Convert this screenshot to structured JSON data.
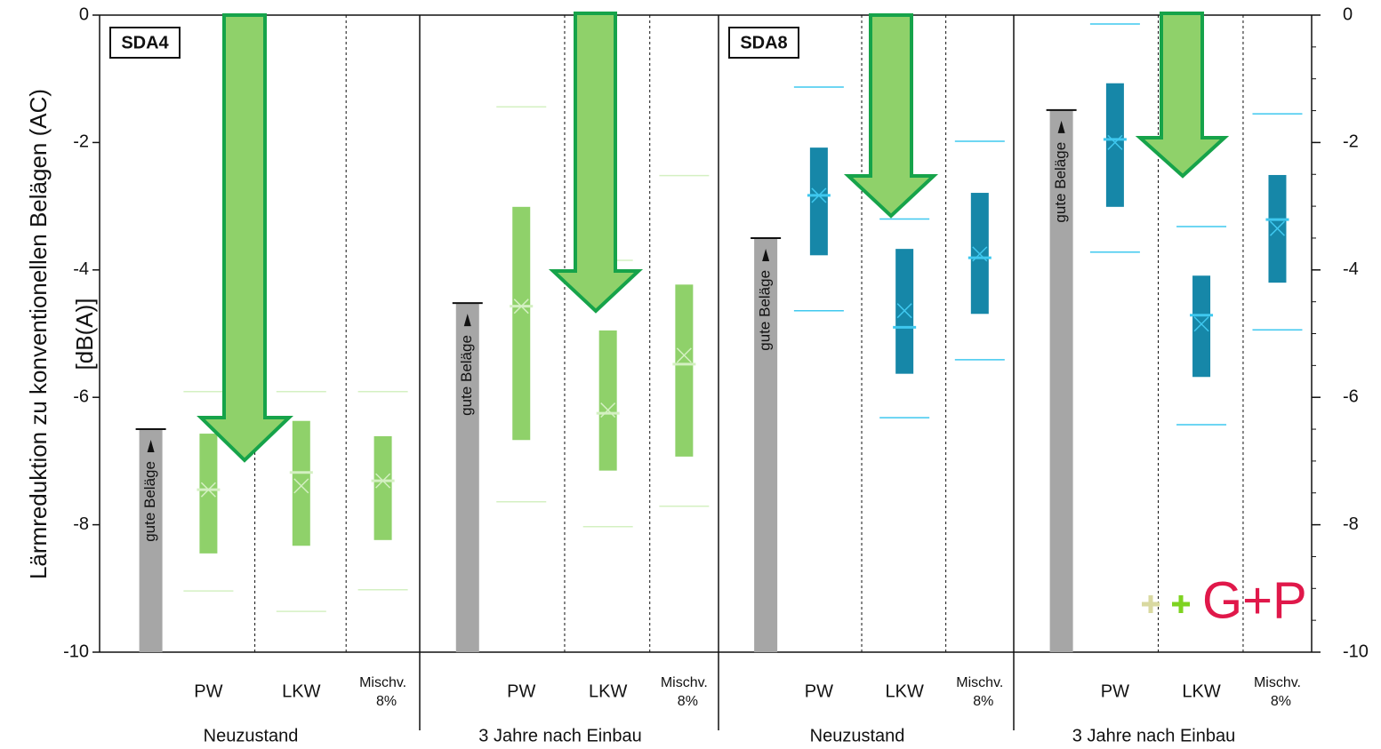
{
  "chart_data": {
    "type": "box",
    "y_label": [
      "Lärmreduktion zu konventionellen Belägen (AC)",
      "[dB(A)]"
    ],
    "ylim": [
      -10,
      0
    ],
    "yticks": [
      0,
      -2,
      -4,
      -6,
      -8,
      -10
    ],
    "y2lim": [
      -10,
      0
    ],
    "y2ticks": [
      0,
      -2,
      -4,
      -6,
      -8,
      -10
    ],
    "reference_label": "gute Beläge",
    "reference_color": "#a6a6a6",
    "logo": "G+P",
    "panels": [
      {
        "tag": "SDA4",
        "group": "Neuzustand",
        "reference": -6.5,
        "color": "#8fd16a",
        "median_color": "#d4f0c2",
        "boxes": [
          {
            "category": "PW",
            "q1": -8.45,
            "q3": -6.57,
            "median": -7.45,
            "mean": -7.45,
            "min": -9.04,
            "max": -5.91
          },
          {
            "category": "LKW",
            "q1": -8.33,
            "q3": -6.37,
            "median": -7.18,
            "mean": -7.39,
            "min": -9.36,
            "max": -5.91
          },
          {
            "category": "Mischv. 8%",
            "q1": -8.24,
            "q3": -6.61,
            "median": -7.31,
            "mean": -7.31,
            "min": -9.02,
            "max": -5.91
          }
        ]
      },
      {
        "group": "3 Jahre nach Einbau",
        "reference": -4.52,
        "color": "#8fd16a",
        "median_color": "#d4f0c2",
        "boxes": [
          {
            "category": "PW",
            "q1": -6.67,
            "q3": -3.01,
            "median": -4.57,
            "mean": -4.57,
            "min": -7.64,
            "max": -1.44
          },
          {
            "category": "LKW",
            "q1": -7.15,
            "q3": -4.95,
            "median": -6.25,
            "mean": -6.2,
            "min": -8.03,
            "max": -3.85
          },
          {
            "category": "Mischv. 8%",
            "q1": -6.93,
            "q3": -4.23,
            "median": -5.48,
            "mean": -5.34,
            "min": -7.71,
            "max": -2.52
          }
        ]
      },
      {
        "tag": "SDA8",
        "group": "Neuzustand",
        "reference": -3.5,
        "color": "#1687a8",
        "median_color": "#3fc8ef",
        "boxes": [
          {
            "category": "PW",
            "q1": -3.77,
            "q3": -2.08,
            "median": -2.83,
            "mean": -2.83,
            "min": -4.64,
            "max": -1.13
          },
          {
            "category": "LKW",
            "q1": -5.63,
            "q3": -3.67,
            "median": -4.9,
            "mean": -4.64,
            "min": -6.32,
            "max": -3.2
          },
          {
            "category": "Mischv. 8%",
            "q1": -4.69,
            "q3": -2.79,
            "median": -3.81,
            "mean": -3.75,
            "min": -5.41,
            "max": -1.98
          }
        ]
      },
      {
        "group": "3 Jahre nach Einbau",
        "reference": -1.49,
        "color": "#1687a8",
        "median_color": "#3fc8ef",
        "boxes": [
          {
            "category": "PW",
            "q1": -3.01,
            "q3": -1.07,
            "median": -1.95,
            "mean": -2.0,
            "min": -3.72,
            "max": -0.14
          },
          {
            "category": "LKW",
            "q1": -5.68,
            "q3": -4.09,
            "median": -4.71,
            "mean": -4.85,
            "min": -6.43,
            "max": -3.32
          },
          {
            "category": "Mischv. 8%",
            "q1": -4.2,
            "q3": -2.51,
            "median": -3.21,
            "mean": -3.35,
            "min": -4.94,
            "max": -1.55
          }
        ]
      }
    ]
  }
}
